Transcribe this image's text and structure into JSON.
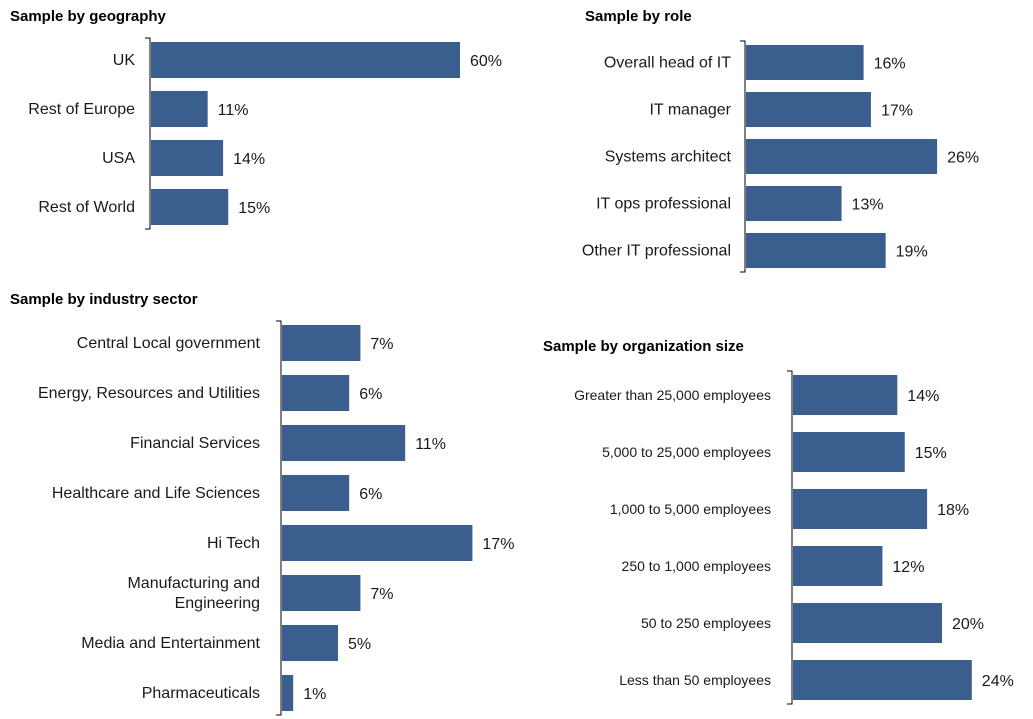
{
  "chart_data": [
    {
      "type": "bar",
      "orientation": "horizontal",
      "title": "Sample by  geography",
      "categories": [
        "UK",
        "Rest of Europe",
        "USA",
        "Rest of World"
      ],
      "values": [
        60,
        11,
        14,
        15
      ],
      "value_labels": [
        "60%",
        "11%",
        "14%",
        "15%"
      ],
      "unit": "%",
      "bar_color": "#3A5F8F"
    },
    {
      "type": "bar",
      "orientation": "horizontal",
      "title": "Sample by role",
      "categories": [
        "Overall head of IT",
        "IT manager",
        "Systems architect",
        "IT ops professional",
        "Other IT professional"
      ],
      "values": [
        16,
        17,
        26,
        13,
        19
      ],
      "value_labels": [
        "16%",
        "17%",
        "26%",
        "13%",
        "19%"
      ],
      "unit": "%",
      "bar_color": "#3A5F8F"
    },
    {
      "type": "bar",
      "orientation": "horizontal",
      "title": "Sample by industry sector",
      "categories": [
        "Central Local government",
        "Energy, Resources and Utilities",
        "Financial Services",
        "Healthcare and Life Sciences",
        "Hi Tech",
        "Manufacturing and Engineering",
        "Media and Entertainment",
        "Pharmaceuticals"
      ],
      "category_lines": [
        [
          "Central Local government"
        ],
        [
          "Energy, Resources and Utilities"
        ],
        [
          "Financial Services"
        ],
        [
          "Healthcare and Life Sciences"
        ],
        [
          "Hi Tech"
        ],
        [
          "Manufacturing and",
          "Engineering"
        ],
        [
          "Media and Entertainment"
        ],
        [
          "Pharmaceuticals"
        ]
      ],
      "values": [
        7,
        6,
        11,
        6,
        17,
        7,
        5,
        1
      ],
      "value_labels": [
        "7%",
        "6%",
        "11%",
        "6%",
        "17%",
        "7%",
        "5%",
        "1%"
      ],
      "unit": "%",
      "bar_color": "#3A5F8F"
    },
    {
      "type": "bar",
      "orientation": "horizontal",
      "title": "Sample by organization size",
      "categories": [
        "Greater than 25,000 employees",
        "5,000 to 25,000 employees",
        "1,000 to 5,000 employees",
        "250 to 1,000 employees",
        "50 to 250 employees",
        "Less than 50 employees"
      ],
      "values": [
        14,
        15,
        18,
        12,
        20,
        24
      ],
      "value_labels": [
        "14%",
        "15%",
        "18%",
        "12%",
        "20%",
        "24%"
      ],
      "unit": "%",
      "bar_color": "#3A5F8F"
    }
  ]
}
